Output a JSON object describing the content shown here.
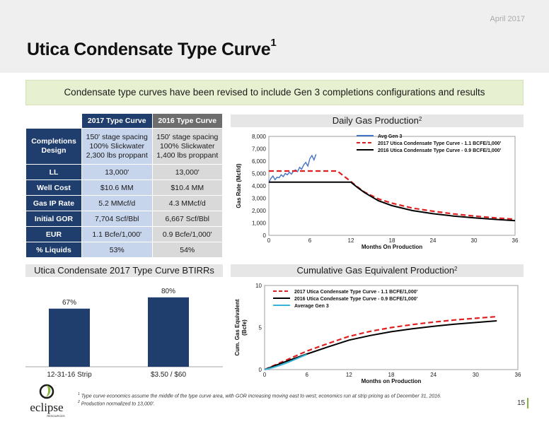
{
  "header": {
    "date": "April 2017",
    "title": "Utica Condensate Type Curve",
    "title_footnote": "1"
  },
  "banner": "Condensate type curves have been revised to include Gen 3 completions configurations and results",
  "type_curve_table": {
    "columns": [
      "2017 Type Curve",
      "2016 Type Curve"
    ],
    "rows": [
      {
        "label": "Completions Design",
        "v2017": [
          "150' stage spacing",
          "100% Slickwater",
          "2,300 lbs proppant"
        ],
        "v2016": [
          "150' stage spacing",
          "100% Slickwater",
          "1,400 lbs proppant"
        ]
      },
      {
        "label": "LL",
        "v2017": "13,000'",
        "v2016": "13,000'"
      },
      {
        "label": "Well Cost",
        "v2017": "$10.6 MM",
        "v2016": "$10.4 MM"
      },
      {
        "label": "Gas IP Rate",
        "v2017": "5.2 MMcf/d",
        "v2016": "4.3 MMcf/d"
      },
      {
        "label": "Initial GOR",
        "v2017": "7,704 Scf/Bbl",
        "v2016": "6,667 Scf/Bbl"
      },
      {
        "label": "EUR",
        "v2017": "1.1 Bcfe/1,000'",
        "v2016": "0.9 Bcfe/1,000'"
      },
      {
        "label": "% Liquids",
        "v2017": "53%",
        "v2016": "54%"
      }
    ]
  },
  "panels": {
    "daily_gas": {
      "title": "Daily Gas Production",
      "footnote": "2"
    },
    "btirr": {
      "title": "Utica Condensate 2017 Type Curve BTIRRs"
    },
    "cumulative": {
      "title": "Cumulative Gas Equivalent Production",
      "footnote": "2"
    }
  },
  "chart_data": [
    {
      "type": "line",
      "xlabel": "Months On Production",
      "ylabel": "Gas Rate (Mcf/d)",
      "xlim": [
        0,
        36
      ],
      "ylim": [
        0,
        8000
      ],
      "xticks": [
        0,
        6,
        12,
        18,
        24,
        30,
        36
      ],
      "xtick_labels": [
        "0",
        "6",
        "12",
        "18",
        "24",
        "30",
        "36"
      ],
      "yticks": [
        0,
        1000,
        2000,
        3000,
        4000,
        5000,
        6000,
        7000,
        8000
      ],
      "ytick_labels": [
        "0",
        "1,000",
        "2,000",
        "3,000",
        "4,000",
        "5,000",
        "6,000",
        "7,000",
        "8,000"
      ],
      "legend_position": "top-right",
      "series": [
        {
          "name": "Avg Gen 3",
          "color": "#4472c4",
          "dash": "solid",
          "x": [
            0,
            0.3,
            0.6,
            0.9,
            1.2,
            1.5,
            1.8,
            2.1,
            2.4,
            2.7,
            3.0,
            3.3,
            3.6,
            3.9,
            4.2,
            4.5,
            4.8,
            5.1,
            5.4,
            5.7,
            6.0,
            6.3,
            6.6,
            6.9
          ],
          "y": [
            4300,
            4600,
            4800,
            4500,
            4700,
            4650,
            4900,
            4750,
            5000,
            4900,
            5100,
            4950,
            5200,
            5300,
            5150,
            5500,
            5350,
            5700,
            5900,
            5600,
            6200,
            6450,
            6100,
            6550
          ]
        },
        {
          "name": "2017 Utica Condensate Type Curve - 1.1 BCFE/1,000'",
          "color": "#e02020",
          "dash": "dashed",
          "x": [
            0,
            10,
            12,
            13,
            14,
            16,
            18,
            21,
            24,
            27,
            30,
            33,
            36
          ],
          "y": [
            5200,
            5200,
            4350,
            3900,
            3500,
            2950,
            2600,
            2200,
            1950,
            1730,
            1560,
            1420,
            1300
          ]
        },
        {
          "name": "2016 Utica Condensate Type Curve - 0.9 BCFE/1,000'",
          "color": "#000000",
          "dash": "solid",
          "x": [
            0,
            12,
            13,
            14,
            16,
            18,
            21,
            24,
            27,
            30,
            33,
            36
          ],
          "y": [
            4300,
            4300,
            3850,
            3450,
            2800,
            2400,
            2000,
            1750,
            1560,
            1410,
            1290,
            1180
          ]
        }
      ]
    },
    {
      "type": "bar",
      "categories": [
        "12-31-16 Strip",
        "$3.50 / $60"
      ],
      "values": [
        67,
        80
      ],
      "value_labels": [
        "67%",
        "80%"
      ],
      "ylim": [
        0,
        100
      ],
      "color": "#1f3d6d"
    },
    {
      "type": "line",
      "xlabel": "Months on Production",
      "ylabel": "Cum. Gas Equivalent (Bcfe)",
      "xlim": [
        0,
        36
      ],
      "ylim": [
        0,
        10
      ],
      "xticks": [
        0,
        6,
        12,
        18,
        24,
        30,
        36
      ],
      "xtick_labels": [
        "0",
        "6",
        "12",
        "18",
        "24",
        "30",
        "36"
      ],
      "yticks": [
        0,
        5,
        10
      ],
      "ytick_labels": [
        "0",
        "5",
        "10"
      ],
      "legend_position": "top-left",
      "series": [
        {
          "name": "2017 Utica Condensate Type Curve - 1.1 BCFE/1,000'",
          "color": "#e02020",
          "dash": "dashed",
          "x": [
            0,
            3,
            6,
            9,
            12,
            15,
            18,
            21,
            24,
            27,
            30,
            33
          ],
          "y": [
            0,
            1.1,
            2.2,
            3.1,
            3.95,
            4.55,
            5.0,
            5.35,
            5.65,
            5.9,
            6.1,
            6.3
          ]
        },
        {
          "name": "2016 Utica Condensate Type Curve - 0.9 BCFE/1,000'",
          "color": "#000000",
          "dash": "solid",
          "x": [
            0,
            3,
            6,
            9,
            12,
            15,
            18,
            21,
            24,
            27,
            30,
            33
          ],
          "y": [
            0,
            0.95,
            1.85,
            2.7,
            3.5,
            4.05,
            4.5,
            4.85,
            5.15,
            5.4,
            5.6,
            5.8
          ]
        },
        {
          "name": "Average Gen 3",
          "color": "#33b3d8",
          "dash": "solid",
          "x": [
            0,
            1,
            2,
            3,
            4,
            5,
            6
          ],
          "y": [
            0,
            0.2,
            0.45,
            0.75,
            1.1,
            1.45,
            1.8
          ]
        }
      ]
    }
  ],
  "footnotes": [
    {
      "num": "1",
      "text": "Type curve economics assume the middle of the type curve area, with GOR increasing moving east to west; economics run at strip pricing as of December 31, 2016."
    },
    {
      "num": "2",
      "text": "Production normalized to 13,000'."
    }
  ],
  "page_number": "15",
  "logo": {
    "name": "eclipse",
    "subtext": "RESOURCES",
    "color": "#1a1a1a",
    "accent": "#8ab33f"
  }
}
